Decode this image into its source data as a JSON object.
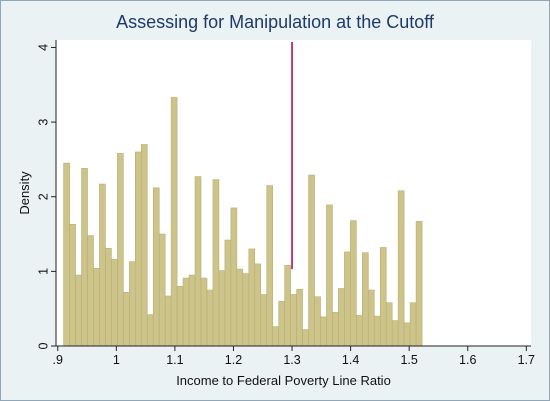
{
  "chart_data": {
    "type": "bar",
    "title": "Assessing for Manipulation at the Cutoff",
    "xlabel": "Income to Federal Poverty Line Ratio",
    "ylabel": "Density",
    "xlim": [
      0.897,
      1.708
    ],
    "ylim": [
      0,
      4.1
    ],
    "x_ticks": [
      0.9,
      1.0,
      1.1,
      1.2,
      1.3,
      1.4,
      1.5,
      1.6,
      1.7
    ],
    "x_tick_labels": [
      ".9",
      "1",
      "1.1",
      "1.2",
      "1.3",
      "1.4",
      "1.5",
      "1.6",
      "1.7"
    ],
    "y_ticks": [
      0,
      1,
      2,
      3,
      4
    ],
    "y_tick_labels": [
      "0",
      "1",
      "2",
      "3",
      "4"
    ],
    "bin_start": 0.91,
    "bin_width": 0.0102,
    "values": [
      2.45,
      1.63,
      0.95,
      2.38,
      1.48,
      1.04,
      2.17,
      1.31,
      1.16,
      2.58,
      0.72,
      1.13,
      2.6,
      2.7,
      0.42,
      2.12,
      1.5,
      0.67,
      3.33,
      0.8,
      0.91,
      0.95,
      2.27,
      0.91,
      0.75,
      2.23,
      1.01,
      1.42,
      1.85,
      1.03,
      0.97,
      1.3,
      1.1,
      0.69,
      2.15,
      0.26,
      0.6,
      1.08,
      0.69,
      0.76,
      0.22,
      2.29,
      0.66,
      0.39,
      1.89,
      0.45,
      0.77,
      1.26,
      1.68,
      0.41,
      1.25,
      0.75,
      0.4,
      1.32,
      0.58,
      0.34,
      2.08,
      0.31,
      0.58,
      1.67
    ],
    "cutoff_x": 1.3,
    "bar_color": "#ccc48a",
    "bar_edge_color": "#b8ae6e",
    "cutoff_color": "#b0124a",
    "plot_background": "#ffffff",
    "grid": false
  }
}
